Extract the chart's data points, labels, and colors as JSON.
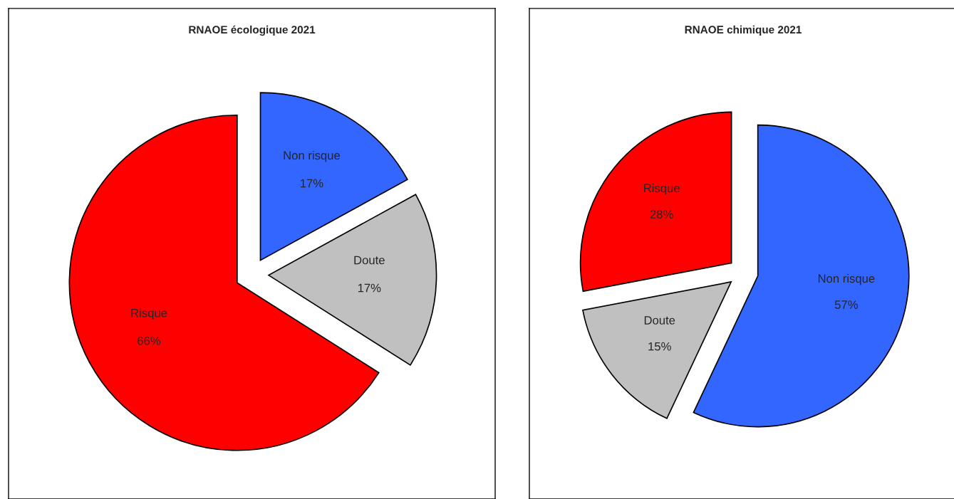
{
  "chart_data": [
    {
      "type": "pie",
      "title": "RNAOE écologique 2021",
      "categories": [
        "Non risque",
        "Doute",
        "Risque"
      ],
      "values": [
        17,
        17,
        66
      ],
      "value_labels": [
        "17%",
        "17%",
        "66%"
      ],
      "colors": [
        "#3366ff",
        "#c0c0c0",
        "#ff0000"
      ]
    },
    {
      "type": "pie",
      "title": "RNAOE chimique 2021",
      "categories": [
        "Non risque",
        "Doute",
        "Risque"
      ],
      "values": [
        57,
        15,
        28
      ],
      "value_labels": [
        "57%",
        "15%",
        "28%"
      ],
      "colors": [
        "#3366ff",
        "#c0c0c0",
        "#ff0000"
      ]
    }
  ]
}
